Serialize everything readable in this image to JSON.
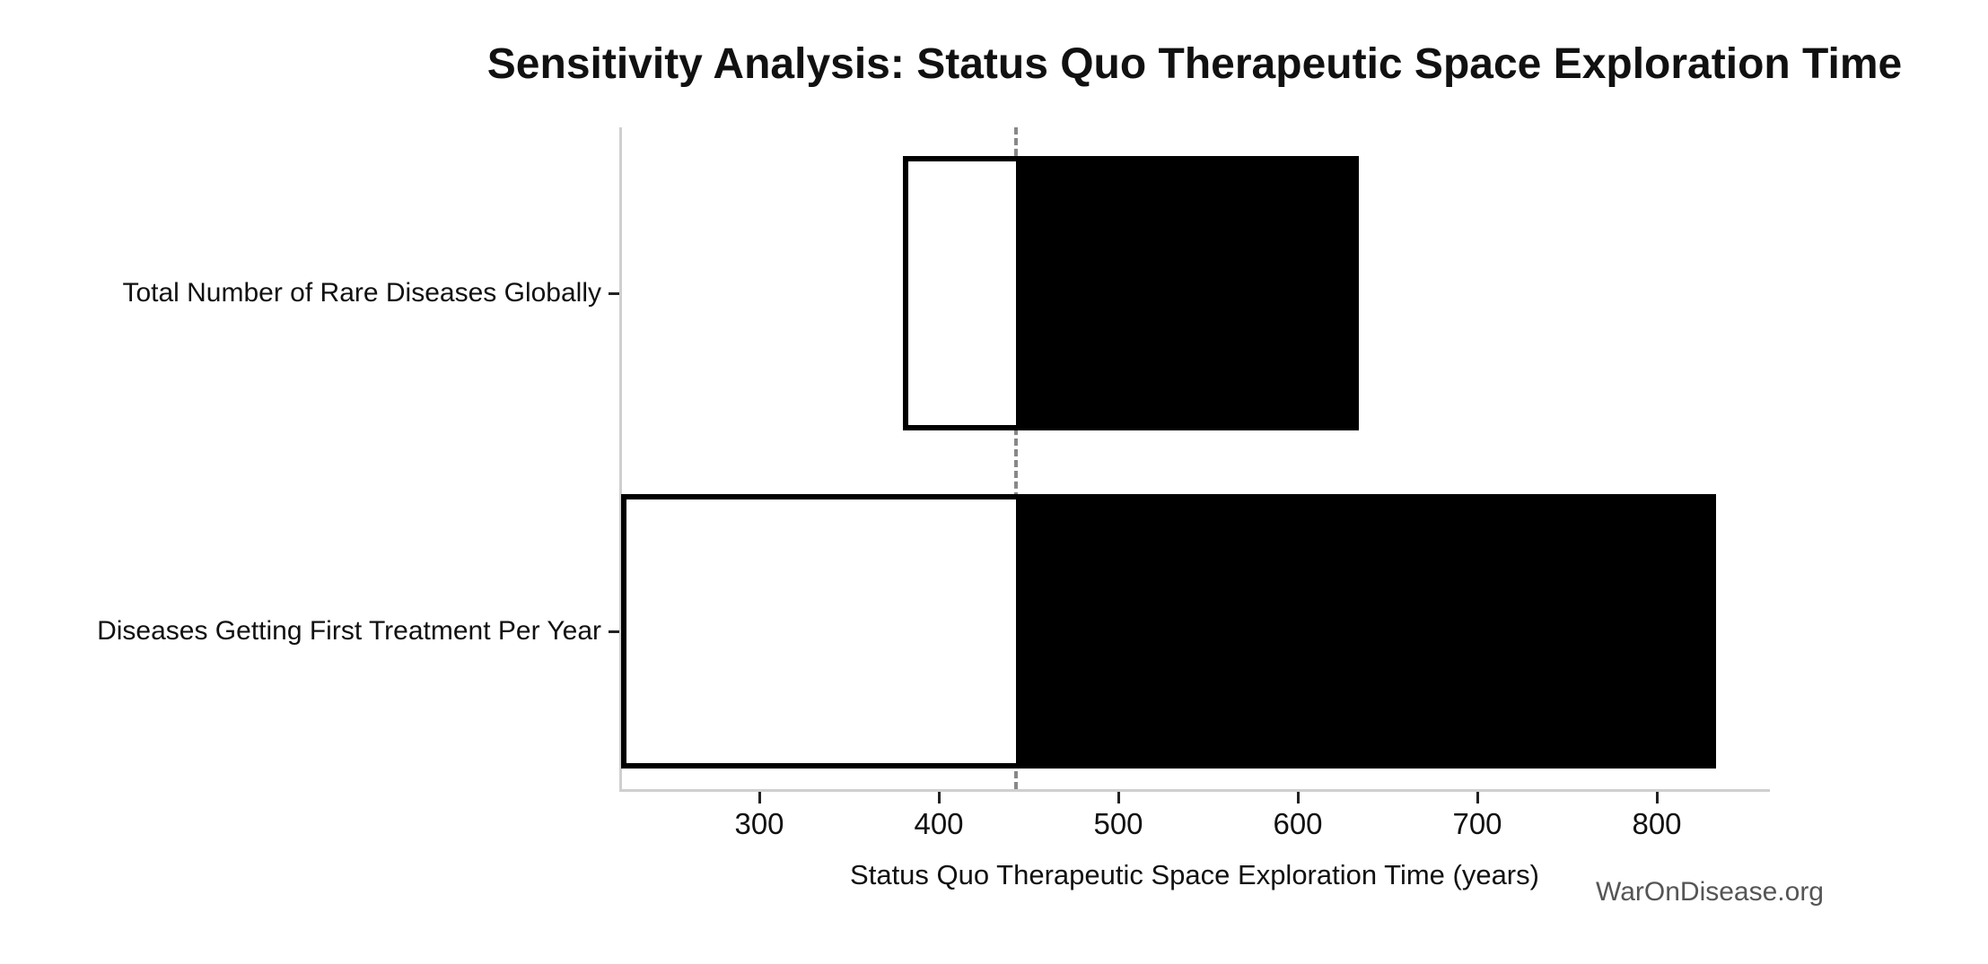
{
  "figure": {
    "title": "Sensitivity Analysis: Status Quo Therapeutic Space Exploration Time",
    "watermark": "WarOnDisease.org"
  },
  "chart_data": {
    "type": "bar",
    "subtype": "tornado-sensitivity",
    "orientation": "horizontal",
    "title": "Sensitivity Analysis: Status Quo Therapeutic Space Exploration Time",
    "xlabel": "Status Quo Therapeutic Space Exploration Time (years)",
    "ylabel": "",
    "categories": [
      "Total Number of Rare Diseases Globally",
      "Diseases Getting First Treatment Per Year"
    ],
    "bars": [
      {
        "category": "Total Number of Rare Diseases Globally",
        "low": 380,
        "high": 634
      },
      {
        "category": "Diseases Getting First Treatment Per Year",
        "low": 223,
        "high": 833
      }
    ],
    "baseline": 443,
    "xticks": [
      300,
      400,
      500,
      600,
      700,
      800
    ],
    "xlim": [
      223,
      862
    ],
    "grid": false,
    "legend": null,
    "colors": {
      "fill_below_baseline": "#ffffff",
      "fill_above_baseline": "#000000",
      "bar_edge": "#000000",
      "baseline_line": "#888888",
      "spine": "#cfcfcf",
      "tick": "#222222",
      "text": "#111111",
      "watermark": "#555555",
      "background": "#ffffff"
    }
  }
}
